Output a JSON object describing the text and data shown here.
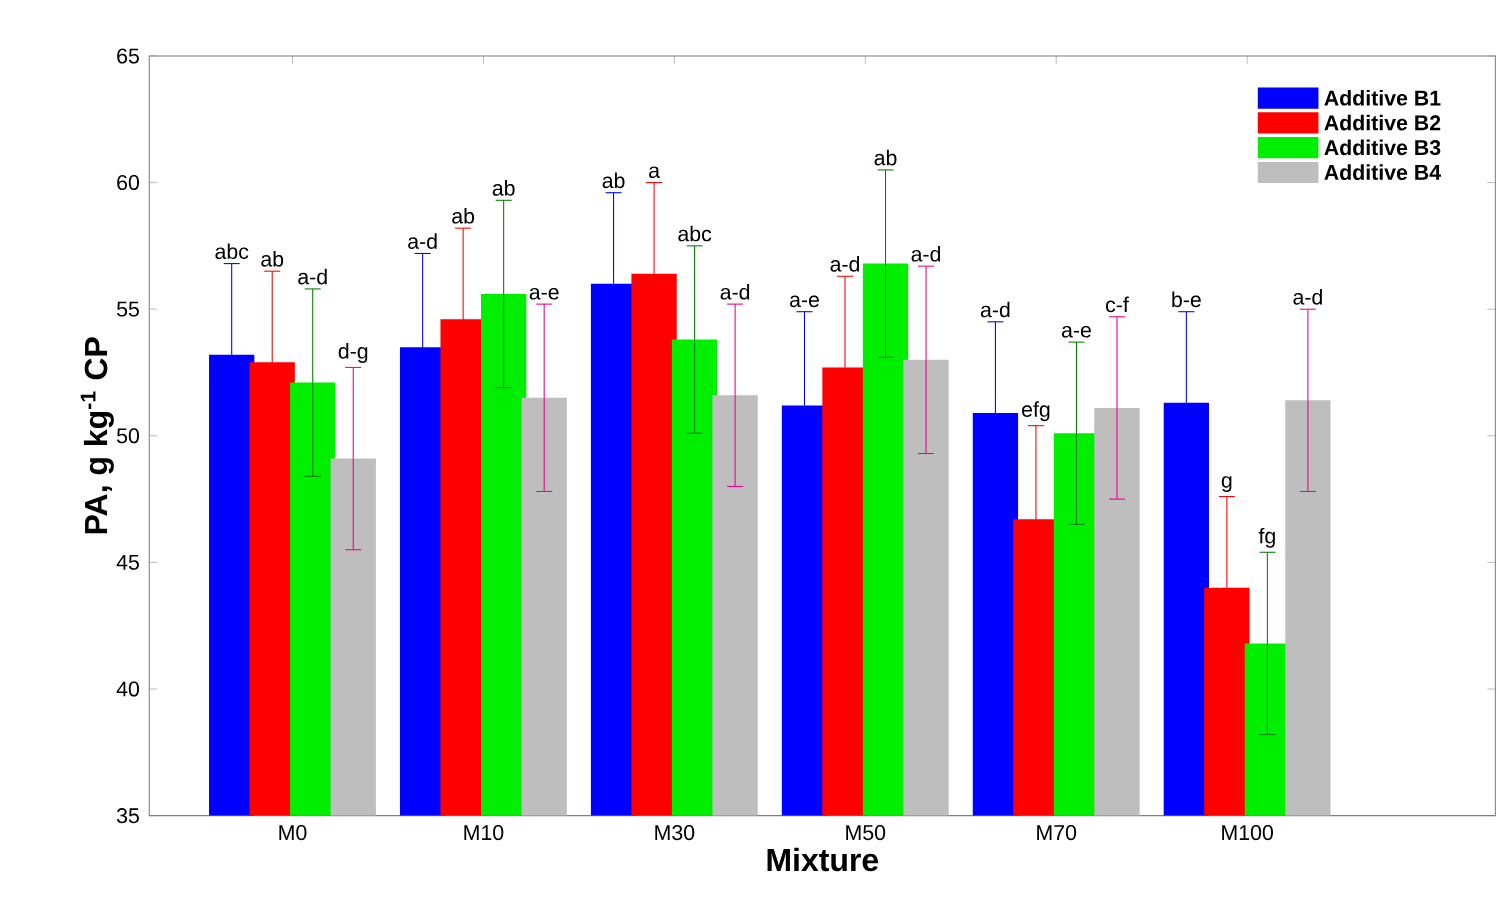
{
  "chart_data": {
    "type": "bar",
    "xlabel": "Mixture",
    "ylabel": "PA, g kg$^{-1}$ CP",
    "categories": [
      "M0",
      "M10",
      "M30",
      "M50",
      "M70",
      "M100"
    ],
    "ylim": [
      35,
      65
    ],
    "yticks": [
      35,
      40,
      45,
      50,
      55,
      60,
      65
    ],
    "legend": "top right",
    "grid": false,
    "series": [
      {
        "name": "Additive  B1",
        "color": "#0000ff",
        "values": [
          53.2,
          53.5,
          56.0,
          51.2,
          50.9,
          51.3
        ],
        "errors": [
          3.6,
          3.7,
          3.6,
          3.7,
          3.6,
          3.6
        ]
      },
      {
        "name": "Additive  B2",
        "color": "#ff0000",
        "values": [
          52.9,
          54.6,
          56.4,
          52.7,
          46.7,
          44.0
        ],
        "errors": [
          3.6,
          3.6,
          3.6,
          3.6,
          3.7,
          3.6
        ]
      },
      {
        "name": "Additive  B3",
        "color": "#00ee00",
        "values": [
          52.1,
          55.6,
          53.8,
          56.8,
          50.1,
          41.8
        ],
        "errors": [
          3.7,
          3.7,
          3.7,
          3.7,
          3.6,
          3.6
        ]
      },
      {
        "name": "Additive  B4",
        "color": "#bebebe",
        "values": [
          49.1,
          51.5,
          51.6,
          53.0,
          51.1,
          51.4
        ],
        "errors": [
          3.6,
          3.7,
          3.6,
          3.7,
          3.6,
          3.6
        ]
      }
    ],
    "annotations": [
      "abc",
      "ab",
      "a-d",
      "d-g",
      "a-d",
      "ab",
      "ab",
      "a-e",
      "ab",
      "a",
      "abc",
      "a-d",
      "a-e",
      "a-d",
      "ab",
      "a-d",
      "a-d",
      "efg",
      "a-e",
      "c-f",
      "b-e",
      "g",
      "fg",
      "a-d"
    ]
  }
}
